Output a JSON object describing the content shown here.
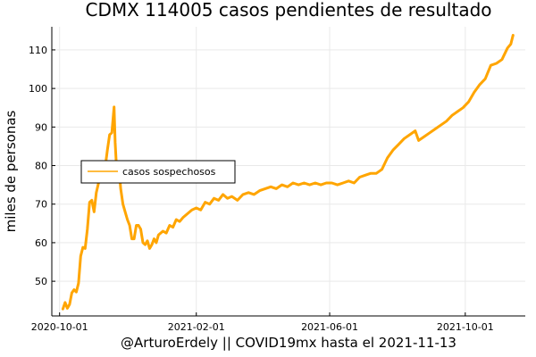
{
  "chart_data": {
    "type": "line",
    "title": "CDMX   114005 casos pendientes de resultado",
    "xlabel": "@ArturoErdely || COVID19mx hasta el 2021-11-13",
    "ylabel": "miles de personas",
    "x_range": [
      "2020-09-24",
      "2021-11-24"
    ],
    "ylim": [
      41,
      116
    ],
    "yticks": [
      50,
      60,
      70,
      80,
      90,
      100,
      110
    ],
    "xticks": [
      "2020-10-01",
      "2021-02-01",
      "2021-06-01",
      "2021-10-01"
    ],
    "grid": true,
    "legend": "top-left",
    "series": [
      {
        "name": "casos sospechosos",
        "color": "#FFA500",
        "points": [
          [
            "2020-10-04",
            42.8
          ],
          [
            "2020-10-06",
            44.5
          ],
          [
            "2020-10-08",
            43.0
          ],
          [
            "2020-10-10",
            44.0
          ],
          [
            "2020-10-12",
            47.0
          ],
          [
            "2020-10-14",
            47.8
          ],
          [
            "2020-10-16",
            47.2
          ],
          [
            "2020-10-18",
            49.5
          ],
          [
            "2020-10-20",
            56.5
          ],
          [
            "2020-10-22",
            58.8
          ],
          [
            "2020-10-24",
            58.5
          ],
          [
            "2020-10-26",
            63.5
          ],
          [
            "2020-10-28",
            70.5
          ],
          [
            "2020-10-30",
            71.0
          ],
          [
            "2020-11-01",
            68.0
          ],
          [
            "2020-11-03",
            73.0
          ],
          [
            "2020-11-05",
            75.5
          ],
          [
            "2020-11-07",
            79.5
          ],
          [
            "2020-11-09",
            78.0
          ],
          [
            "2020-11-11",
            79.5
          ],
          [
            "2020-11-13",
            84.0
          ],
          [
            "2020-11-15",
            88.0
          ],
          [
            "2020-11-17",
            88.5
          ],
          [
            "2020-11-19",
            95.2
          ],
          [
            "2020-11-20",
            86.0
          ],
          [
            "2020-11-21",
            80.5
          ],
          [
            "2020-11-23",
            81.0
          ],
          [
            "2020-11-25",
            74.0
          ],
          [
            "2020-11-27",
            70.0
          ],
          [
            "2020-11-29",
            68.0
          ],
          [
            "2020-12-01",
            66.0
          ],
          [
            "2020-12-03",
            64.5
          ],
          [
            "2020-12-05",
            61.0
          ],
          [
            "2020-12-07",
            61.0
          ],
          [
            "2020-12-09",
            64.5
          ],
          [
            "2020-12-11",
            64.5
          ],
          [
            "2020-12-13",
            63.5
          ],
          [
            "2020-12-15",
            60.0
          ],
          [
            "2020-12-17",
            59.5
          ],
          [
            "2020-12-19",
            60.5
          ],
          [
            "2020-12-21",
            58.5
          ],
          [
            "2020-12-23",
            59.5
          ],
          [
            "2020-12-25",
            61.0
          ],
          [
            "2020-12-27",
            60.0
          ],
          [
            "2020-12-29",
            62.0
          ],
          [
            "2021-01-02",
            63.0
          ],
          [
            "2021-01-05",
            62.5
          ],
          [
            "2021-01-08",
            64.5
          ],
          [
            "2021-01-11",
            64.0
          ],
          [
            "2021-01-14",
            66.0
          ],
          [
            "2021-01-17",
            65.5
          ],
          [
            "2021-01-20",
            66.5
          ],
          [
            "2021-01-24",
            67.5
          ],
          [
            "2021-01-28",
            68.5
          ],
          [
            "2021-02-01",
            69.0
          ],
          [
            "2021-02-05",
            68.5
          ],
          [
            "2021-02-09",
            70.5
          ],
          [
            "2021-02-13",
            70.0
          ],
          [
            "2021-02-17",
            71.5
          ],
          [
            "2021-02-21",
            71.0
          ],
          [
            "2021-02-25",
            72.5
          ],
          [
            "2021-03-01",
            71.5
          ],
          [
            "2021-03-05",
            72.0
          ],
          [
            "2021-03-10",
            71.0
          ],
          [
            "2021-03-15",
            72.5
          ],
          [
            "2021-03-20",
            73.0
          ],
          [
            "2021-03-25",
            72.5
          ],
          [
            "2021-03-30",
            73.5
          ],
          [
            "2021-04-04",
            74.0
          ],
          [
            "2021-04-09",
            74.5
          ],
          [
            "2021-04-14",
            74.0
          ],
          [
            "2021-04-19",
            75.0
          ],
          [
            "2021-04-24",
            74.5
          ],
          [
            "2021-04-29",
            75.5
          ],
          [
            "2021-05-04",
            75.0
          ],
          [
            "2021-05-09",
            75.5
          ],
          [
            "2021-05-14",
            75.0
          ],
          [
            "2021-05-19",
            75.5
          ],
          [
            "2021-05-24",
            75.0
          ],
          [
            "2021-05-29",
            75.5
          ],
          [
            "2021-06-03",
            75.5
          ],
          [
            "2021-06-08",
            75.0
          ],
          [
            "2021-06-13",
            75.5
          ],
          [
            "2021-06-18",
            76.0
          ],
          [
            "2021-06-23",
            75.5
          ],
          [
            "2021-06-28",
            77.0
          ],
          [
            "2021-07-03",
            77.5
          ],
          [
            "2021-07-08",
            78.0
          ],
          [
            "2021-07-13",
            78.0
          ],
          [
            "2021-07-18",
            79.0
          ],
          [
            "2021-07-23",
            82.0
          ],
          [
            "2021-07-28",
            84.0
          ],
          [
            "2021-08-02",
            85.5
          ],
          [
            "2021-08-07",
            87.0
          ],
          [
            "2021-08-12",
            88.0
          ],
          [
            "2021-08-17",
            89.0
          ],
          [
            "2021-08-20",
            86.5
          ],
          [
            "2021-08-25",
            87.5
          ],
          [
            "2021-08-30",
            88.5
          ],
          [
            "2021-09-04",
            89.5
          ],
          [
            "2021-09-09",
            90.5
          ],
          [
            "2021-09-14",
            91.5
          ],
          [
            "2021-09-19",
            93.0
          ],
          [
            "2021-09-24",
            94.0
          ],
          [
            "2021-09-29",
            95.0
          ],
          [
            "2021-10-04",
            96.5
          ],
          [
            "2021-10-09",
            99.0
          ],
          [
            "2021-10-14",
            101.0
          ],
          [
            "2021-10-19",
            102.5
          ],
          [
            "2021-10-24",
            106.0
          ],
          [
            "2021-10-29",
            106.5
          ],
          [
            "2021-11-03",
            107.5
          ],
          [
            "2021-11-08",
            110.5
          ],
          [
            "2021-11-11",
            111.5
          ],
          [
            "2021-11-13",
            113.8
          ]
        ]
      }
    ]
  }
}
